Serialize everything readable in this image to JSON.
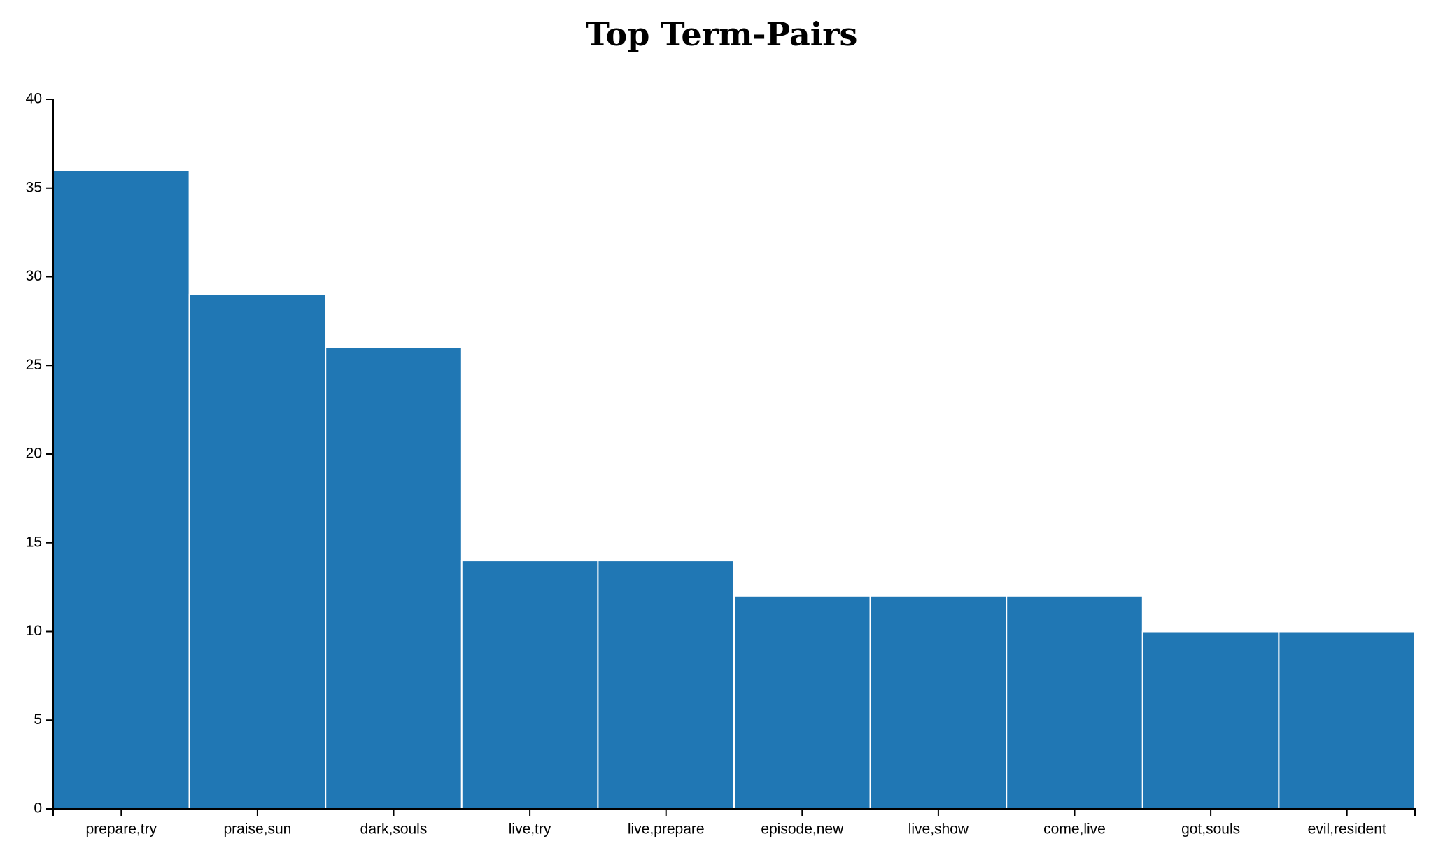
{
  "chart_data": {
    "type": "bar",
    "title": "Top Term-Pairs",
    "xlabel": "",
    "ylabel": "",
    "categories": [
      "prepare,try",
      "praise,sun",
      "dark,souls",
      "live,try",
      "live,prepare",
      "episode,new",
      "live,show",
      "come,live",
      "got,souls",
      "evil,resident"
    ],
    "values": [
      36,
      29,
      26,
      14,
      14,
      12,
      12,
      12,
      10,
      10
    ],
    "ylim": [
      0,
      40
    ],
    "yticks": [
      0,
      5,
      10,
      15,
      20,
      25,
      30,
      35,
      40
    ],
    "grid": false,
    "legend": "none",
    "bar_color": "#2077b4"
  }
}
